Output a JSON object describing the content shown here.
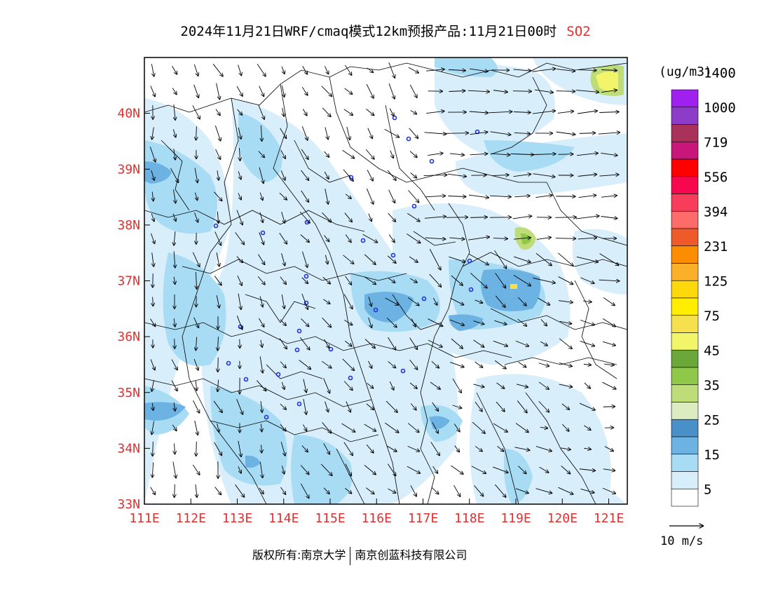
{
  "title": {
    "text": "2024年11月21日WRF/cmaq模式12km预报产品:11月21日00时",
    "species": "SO2"
  },
  "colors": {
    "axis_label": "#e03030",
    "species": "#e03030"
  },
  "map": {
    "lon_labels": [
      "111E",
      "112E",
      "113E",
      "114E",
      "115E",
      "116E",
      "117E",
      "118E",
      "119E",
      "120E",
      "121E"
    ],
    "lat_labels": [
      "33N",
      "34N",
      "35N",
      "36N",
      "37N",
      "38N",
      "39N",
      "40N"
    ],
    "lon_range": [
      111,
      121.4
    ],
    "lat_range": [
      33,
      41
    ]
  },
  "legend": {
    "unit": "(ug/m3)",
    "labels": [
      "5",
      "15",
      "25",
      "35",
      "45",
      "75",
      "125",
      "231",
      "394",
      "556",
      "719",
      "1000",
      "1400"
    ],
    "colors": [
      "#ffffff",
      "#d8eefa",
      "#a8dcf5",
      "#6cb2e2",
      "#4a90c8",
      "#dcecc0",
      "#bedd78",
      "#90c84a",
      "#6aa83a",
      "#f2f56a",
      "#f7e04e",
      "#ffee00",
      "#fdd80b",
      "#fbb02a",
      "#fc8c00",
      "#ee5a2a",
      "#fd6b6b",
      "#fa3c5c",
      "#f6074e",
      "#ff0000",
      "#c8167a",
      "#a8325a",
      "#8c3cc8",
      "#a020f0"
    ]
  },
  "wind": {
    "scale_label": "10 m/s"
  },
  "footer": {
    "left": "版权所有:南京大学",
    "right": "南京创蓝科技有限公司"
  }
}
